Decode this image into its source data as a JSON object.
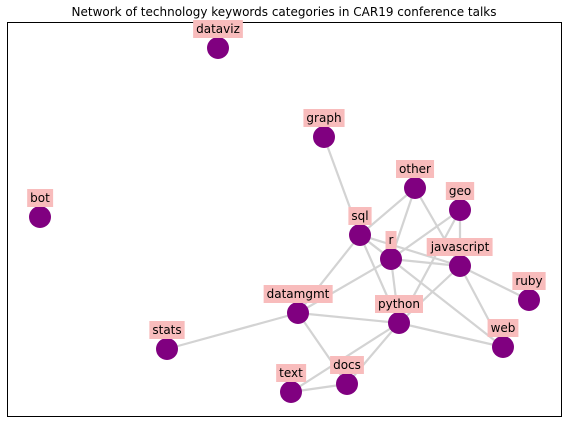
{
  "title": "Network of technology keywords categories in CAR19 conference talks",
  "colors": {
    "node": "#800080",
    "edge": "#d3d3d3",
    "label_background": "#f8bcbc",
    "frame": "#000000",
    "background": "#ffffff"
  },
  "network": {
    "nodes": [
      {
        "id": "dataviz",
        "label": "dataviz"
      },
      {
        "id": "graph",
        "label": "graph"
      },
      {
        "id": "bot",
        "label": "bot"
      },
      {
        "id": "other",
        "label": "other"
      },
      {
        "id": "geo",
        "label": "geo"
      },
      {
        "id": "sql",
        "label": "sql"
      },
      {
        "id": "r",
        "label": "r"
      },
      {
        "id": "javascript",
        "label": "javascript"
      },
      {
        "id": "ruby",
        "label": "ruby"
      },
      {
        "id": "datamgmt",
        "label": "datamgmt"
      },
      {
        "id": "python",
        "label": "python"
      },
      {
        "id": "stats",
        "label": "stats"
      },
      {
        "id": "web",
        "label": "web"
      },
      {
        "id": "text",
        "label": "text"
      },
      {
        "id": "docs",
        "label": "docs"
      }
    ],
    "edges": [
      [
        "graph",
        "sql"
      ],
      [
        "other",
        "sql"
      ],
      [
        "other",
        "r"
      ],
      [
        "other",
        "javascript"
      ],
      [
        "geo",
        "r"
      ],
      [
        "geo",
        "javascript"
      ],
      [
        "geo",
        "python"
      ],
      [
        "sql",
        "r"
      ],
      [
        "sql",
        "javascript"
      ],
      [
        "sql",
        "datamgmt"
      ],
      [
        "sql",
        "python"
      ],
      [
        "sql",
        "web"
      ],
      [
        "r",
        "javascript"
      ],
      [
        "r",
        "python"
      ],
      [
        "r",
        "datamgmt"
      ],
      [
        "javascript",
        "ruby"
      ],
      [
        "javascript",
        "python"
      ],
      [
        "javascript",
        "web"
      ],
      [
        "datamgmt",
        "python"
      ],
      [
        "datamgmt",
        "stats"
      ],
      [
        "datamgmt",
        "docs"
      ],
      [
        "python",
        "web"
      ],
      [
        "python",
        "docs"
      ],
      [
        "python",
        "text"
      ],
      [
        "text",
        "docs"
      ]
    ]
  }
}
